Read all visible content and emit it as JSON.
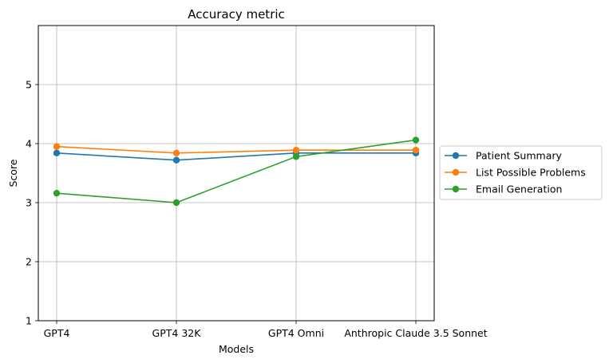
{
  "chart_data": {
    "type": "line",
    "title": "Accuracy metric",
    "xlabel": "Models",
    "ylabel": "Score",
    "categories": [
      "GPT4",
      "GPT4 32K",
      "GPT4 Omni",
      "Anthropic Claude 3.5 Sonnet"
    ],
    "ylim": [
      1,
      6
    ],
    "yticks": [
      1,
      2,
      3,
      4,
      5
    ],
    "grid": true,
    "legend_position": "outside-right",
    "series": [
      {
        "name": "Patient Summary",
        "color": "#1f77b4",
        "values": [
          3.84,
          3.72,
          3.84,
          3.84
        ]
      },
      {
        "name": "List Possible Problems",
        "color": "#ff7f0e",
        "values": [
          3.95,
          3.84,
          3.89,
          3.89
        ]
      },
      {
        "name": "Email Generation",
        "color": "#2ca02c",
        "values": [
          3.16,
          3.0,
          3.78,
          4.06
        ]
      }
    ]
  }
}
